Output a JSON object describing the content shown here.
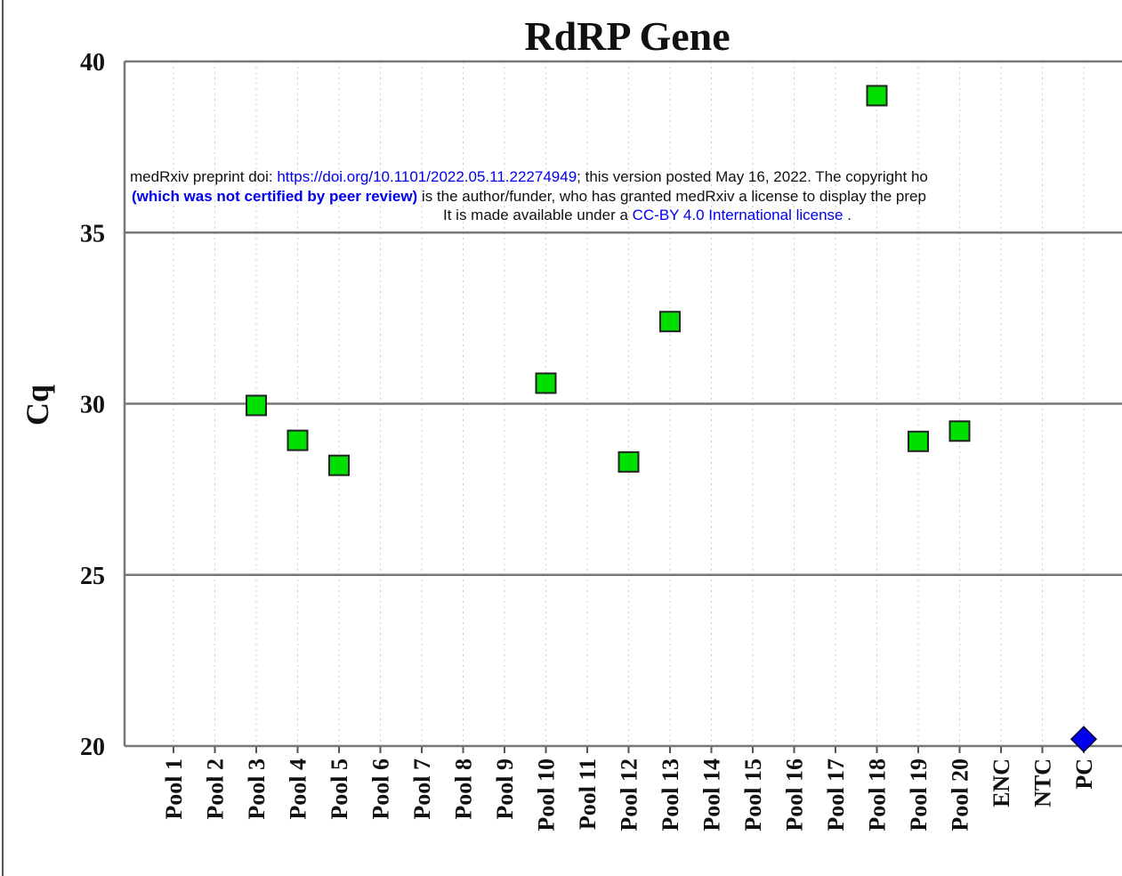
{
  "chart_data": {
    "type": "scatter",
    "title": "RdRP Gene",
    "y_label": "Cq",
    "categories": [
      "Pool 1",
      "Pool 2",
      "Pool 3",
      "Pool 4",
      "Pool 5",
      "Pool 6",
      "Pool 7",
      "Pool 8",
      "Pool 9",
      "Pool 10",
      "Pool 11",
      "Pool 12",
      "Pool 13",
      "Pool 14",
      "Pool 15",
      "Pool 16",
      "Pool 17",
      "Pool 18",
      "Pool 19",
      "Pool 20",
      "ENC",
      "NTC",
      "PC"
    ],
    "series": [
      {
        "color": "#00e000",
        "marker": "square",
        "values": [
          null,
          null,
          29.95,
          28.93,
          28.2,
          null,
          null,
          null,
          null,
          30.6,
          null,
          28.3,
          32.4,
          null,
          null,
          null,
          null,
          39.0,
          28.9,
          29.2,
          null,
          null,
          null
        ]
      },
      {
        "color": "#0000ee",
        "marker": "diamond",
        "values": [
          null,
          null,
          null,
          null,
          null,
          null,
          null,
          null,
          null,
          null,
          null,
          null,
          null,
          null,
          null,
          null,
          null,
          null,
          null,
          null,
          null,
          null,
          20.2
        ]
      }
    ],
    "ylim": [
      20,
      40
    ],
    "yticks": [
      20,
      25,
      30,
      35,
      40
    ],
    "grid": true
  },
  "header": {
    "line1": {
      "text": "medRxiv preprint doi: ",
      "link": "https://doi.org/10.1101/2022.05.11.22274949",
      "rest": "; this version posted May 16, 2022. The copyright ho"
    },
    "line2": {
      "bold": "(which was not certified by peer review)",
      "rest": " is the author/funder, who has granted medRxiv a license to display the prep"
    },
    "line3": {
      "text": "It is made available under a ",
      "link": "CC-BY 4.0 International license",
      "rest": " ."
    }
  }
}
